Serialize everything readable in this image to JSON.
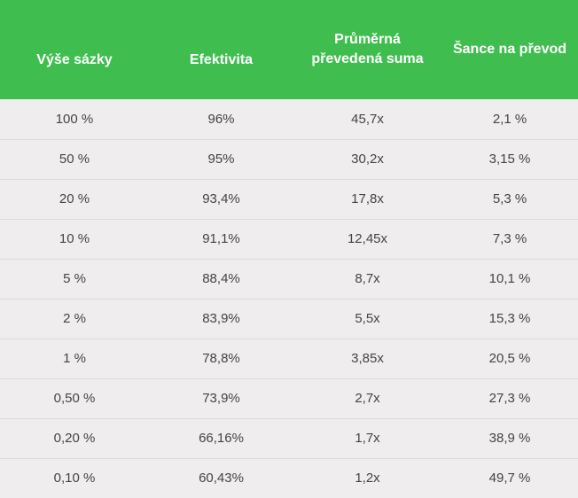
{
  "table": {
    "headers": [
      "Výše sázky",
      "Efektivita",
      "Průměrná převedená suma",
      "Šance na převod"
    ],
    "rows": [
      [
        "100 %",
        "96%",
        "45,7x",
        "2,1 %"
      ],
      [
        "50 %",
        "95%",
        "30,2x",
        "3,15 %"
      ],
      [
        "20 %",
        "93,4%",
        "17,8x",
        "5,3 %"
      ],
      [
        "10 %",
        "91,1%",
        "12,45x",
        "7,3 %"
      ],
      [
        "5 %",
        "88,4%",
        "8,7x",
        "10,1 %"
      ],
      [
        "2 %",
        "83,9%",
        "5,5x",
        "15,3 %"
      ],
      [
        "1 %",
        "78,8%",
        "3,85x",
        "20,5 %"
      ],
      [
        "0,50 %",
        "73,9%",
        "2,7x",
        "27,3 %"
      ],
      [
        "0,20 %",
        "66,16%",
        "1,7x",
        "38,9 %"
      ],
      [
        "0,10 %",
        "60,43%",
        "1,2x",
        "49,7 %"
      ]
    ]
  },
  "colors": {
    "header_bg": "#3fbe4f",
    "header_text": "#ffffff",
    "body_bg": "#efeded",
    "body_text": "#444444"
  }
}
